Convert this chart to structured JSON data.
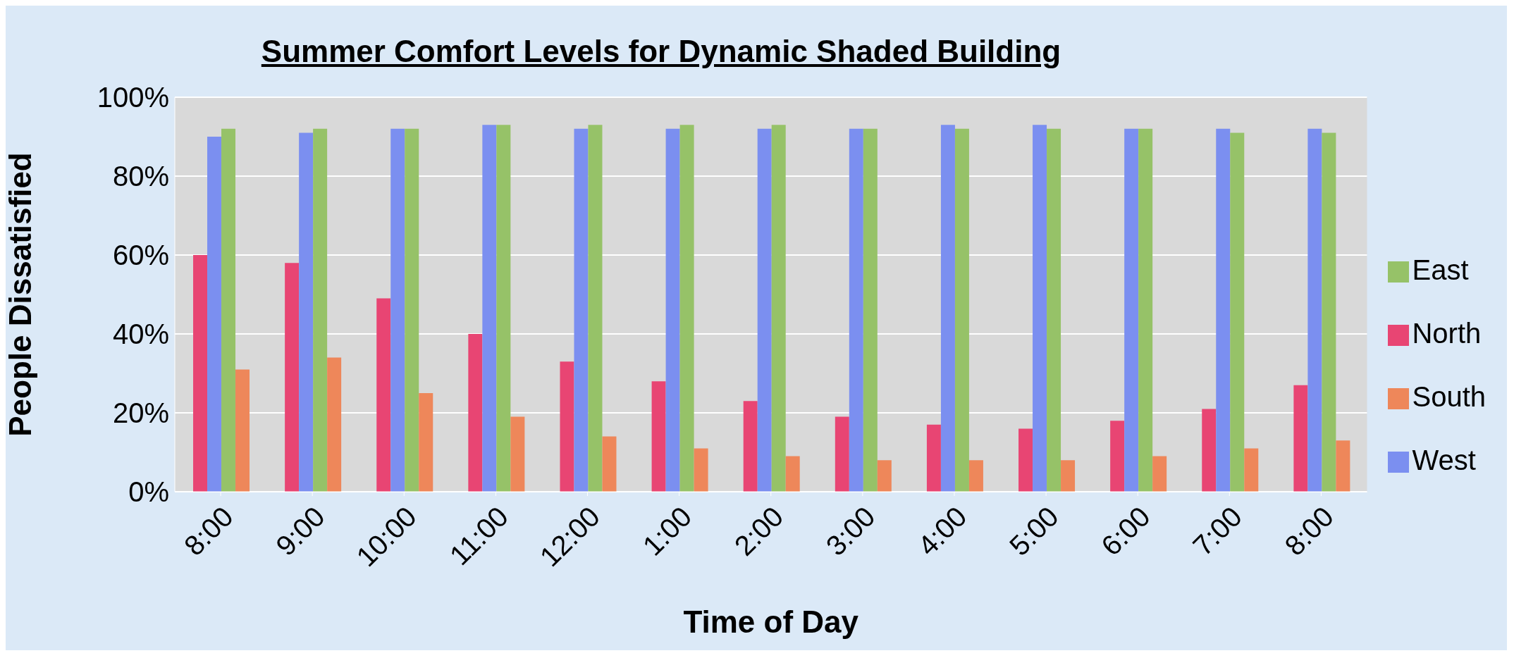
{
  "chart_data": {
    "type": "bar",
    "title": "Summer Comfort Levels for Dynamic Shaded Building",
    "xlabel": "Time of Day",
    "ylabel": "People Dissatisfied",
    "categories": [
      "8:00",
      "9:00",
      "10:00",
      "11:00",
      "12:00",
      "1:00",
      "2:00",
      "3:00",
      "4:00",
      "5:00",
      "6:00",
      "7:00",
      "8:00"
    ],
    "series": [
      {
        "name": "North",
        "color": "#e84573",
        "values": [
          60,
          58,
          49,
          40,
          33,
          28,
          23,
          19,
          17,
          16,
          18,
          21,
          27
        ]
      },
      {
        "name": "West",
        "color": "#7b8ff0",
        "values": [
          90,
          91,
          92,
          93,
          92,
          92,
          92,
          92,
          93,
          93,
          92,
          92,
          92
        ]
      },
      {
        "name": "East",
        "color": "#96c268",
        "values": [
          92,
          92,
          92,
          93,
          93,
          93,
          93,
          92,
          92,
          92,
          92,
          91,
          91
        ]
      },
      {
        "name": "South",
        "color": "#ee875a",
        "values": [
          31,
          34,
          25,
          19,
          14,
          11,
          9,
          8,
          8,
          8,
          9,
          11,
          13
        ]
      }
    ],
    "ylim": [
      0,
      100
    ],
    "yticks": [
      {
        "value": 0,
        "label": "0%"
      },
      {
        "value": 20,
        "label": "20%"
      },
      {
        "value": 40,
        "label": "40%"
      },
      {
        "value": 60,
        "label": "60%"
      },
      {
        "value": 80,
        "label": "80%"
      },
      {
        "value": 100,
        "label": "100%"
      }
    ],
    "grid": "y",
    "legend": "right"
  }
}
